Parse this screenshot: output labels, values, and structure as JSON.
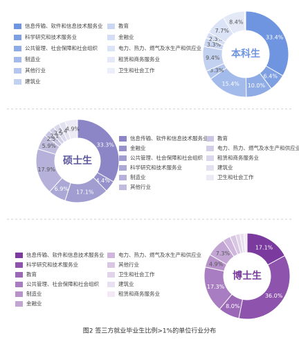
{
  "chart_data": [
    {
      "type": "pie",
      "center_label": "本科生",
      "categories": [
        "信息传输、软件和信息技术服务业",
        "科学研究和技术服务业",
        "公共管理、社会保障和社会组织",
        "制造业",
        "其他行业",
        "建筑业",
        "教育",
        "金融业",
        "电力、热力、燃气及水生产和供应业",
        "租赁和商务服务业",
        "卫生和社会工作"
      ],
      "values": [
        33.4,
        6.4,
        10.0,
        15.4,
        3.3,
        9.4,
        3.3,
        2.3,
        7.7,
        8.4,
        0.4
      ],
      "value_labels": [
        "33.4%",
        "6.4%",
        "10.0%",
        "15.4%",
        "3.3%",
        "9.4%",
        "3.3%",
        "2.3%",
        "7.7%",
        "8.4%",
        null
      ],
      "colors": [
        "#6f95e0",
        "#7f9fe3",
        "#8fabe6",
        "#a3bbeb",
        "#b4c6ee",
        "#c3d1f1",
        "#cbd7f2",
        "#d4ddf4",
        "#dbe3f6",
        "#e3e9f7",
        "#eceff9"
      ]
    },
    {
      "type": "pie",
      "center_label": "硕士生",
      "categories": [
        "信息传输、软件和信息技术服务业",
        "金融业",
        "公共管理、社会保障和社会组织",
        "科学研究和技术服务业",
        "制造业",
        "其他行业",
        "教育",
        "电力、热力、燃气及水生产和供应业",
        "租赁和商务服务业",
        "建筑业",
        "卫生和社会工作"
      ],
      "values": [
        33.3,
        4.4,
        17.1,
        6.9,
        17.9,
        5.9,
        2.5,
        2.1,
        2.5,
        2.4,
        4.9
      ],
      "value_labels": [
        "33.3%",
        "4.4%",
        "17.1%",
        "6.9%",
        "17.9%",
        "5.9%",
        "2.5%",
        "2.1%",
        "2.5%",
        "2.4%",
        "4.9%"
      ],
      "colors": [
        "#8c86c6",
        "#9791cb",
        "#a29dd0",
        "#aca8d5",
        "#b5b1da",
        "#bfbcde",
        "#c8c6e3",
        "#d1cfe8",
        "#dad8ec",
        "#e2e1f0",
        "#ebeaf5"
      ]
    },
    {
      "type": "pie",
      "center_label": "博士生",
      "categories": [
        "信息传输、软件和信息技术服务业",
        "科学研究和技术服务业",
        "教育",
        "公共管理、社会保障和社会组织",
        "制造业",
        "金融业",
        "电力、热力、燃气及水生产和供应业",
        "其他行业",
        "卫生和社会工作",
        "建筑业",
        "租赁和商务服务业"
      ],
      "values": [
        17.1,
        36.0,
        8.0,
        17.3,
        4.9,
        7.3,
        2.9,
        2.2,
        1.6,
        1.5,
        1.2
      ],
      "value_labels": [
        "17.1%",
        "36.0%",
        "8.0%",
        "17.3%",
        "4.9%",
        "7.3%",
        null,
        null,
        null,
        null,
        null
      ],
      "colors": [
        "#7a3a9e",
        "#8d53ad",
        "#9b68b7",
        "#a97dc1",
        "#b792cb",
        "#c3a5d4",
        "#ceb6dc",
        "#d8c6e3",
        "#e1d3ea",
        "#e9dff0",
        "#f1eaf5"
      ]
    }
  ],
  "caption": "图2  签三方就业毕业生比例>1%的单位行业分布"
}
